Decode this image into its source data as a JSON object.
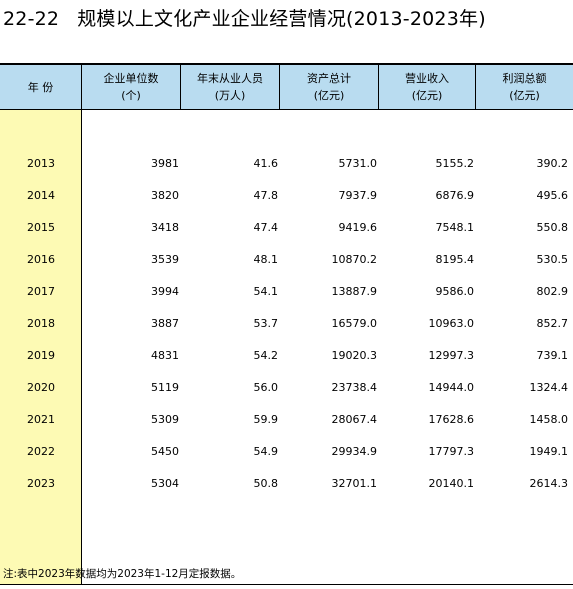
{
  "title": {
    "number": "22-22",
    "text": "规模以上文化产业企业经营情况(2013-2023年)"
  },
  "headers": [
    {
      "line1": "年  份",
      "line2": ""
    },
    {
      "line1": "企业单位数",
      "line2": "(个)"
    },
    {
      "line1": "年末从业人员",
      "line2": "(万人)"
    },
    {
      "line1": "资产总计",
      "line2": "(亿元)"
    },
    {
      "line1": "营业收入",
      "line2": "(亿元)"
    },
    {
      "line1": "利润总额",
      "line2": "(亿元)"
    }
  ],
  "rows": [
    {
      "year": "2013",
      "enterprises": "3981",
      "employees": "41.6",
      "assets": "5731.0",
      "revenue": "5155.2",
      "profit": "390.2"
    },
    {
      "year": "2014",
      "enterprises": "3820",
      "employees": "47.8",
      "assets": "7937.9",
      "revenue": "6876.9",
      "profit": "495.6"
    },
    {
      "year": "2015",
      "enterprises": "3418",
      "employees": "47.4",
      "assets": "9419.6",
      "revenue": "7548.1",
      "profit": "550.8"
    },
    {
      "year": "2016",
      "enterprises": "3539",
      "employees": "48.1",
      "assets": "10870.2",
      "revenue": "8195.4",
      "profit": "530.5"
    },
    {
      "year": "2017",
      "enterprises": "3994",
      "employees": "54.1",
      "assets": "13887.9",
      "revenue": "9586.0",
      "profit": "802.9"
    },
    {
      "year": "2018",
      "enterprises": "3887",
      "employees": "53.7",
      "assets": "16579.0",
      "revenue": "10963.0",
      "profit": "852.7"
    },
    {
      "year": "2019",
      "enterprises": "4831",
      "employees": "54.2",
      "assets": "19020.3",
      "revenue": "12997.3",
      "profit": "739.1"
    },
    {
      "year": "2020",
      "enterprises": "5119",
      "employees": "56.0",
      "assets": "23738.4",
      "revenue": "14944.0",
      "profit": "1324.4"
    },
    {
      "year": "2021",
      "enterprises": "5309",
      "employees": "59.9",
      "assets": "28067.4",
      "revenue": "17628.6",
      "profit": "1458.0"
    },
    {
      "year": "2022",
      "enterprises": "5450",
      "employees": "54.9",
      "assets": "29934.9",
      "revenue": "17797.3",
      "profit": "1949.1"
    },
    {
      "year": "2023",
      "enterprises": "5304",
      "employees": "50.8",
      "assets": "32701.1",
      "revenue": "20140.1",
      "profit": "2614.3"
    }
  ],
  "note": "注:表中2023年数据均为2023年1-12月定报数据。",
  "colors": {
    "header_bg": "#b9dcf0",
    "year_col_bg": "#fdfab4"
  }
}
